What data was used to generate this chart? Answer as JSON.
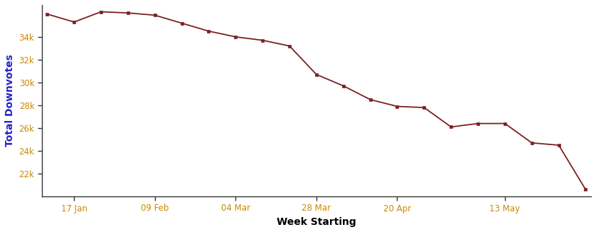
{
  "y_values": [
    36000,
    35300,
    36200,
    36100,
    35900,
    35200,
    34500,
    34000,
    33700,
    33200,
    30700,
    29700,
    28500,
    27900,
    27800,
    26100,
    26400,
    26400,
    24700,
    24500,
    20600
  ],
  "line_color": "#7B2020",
  "marker": "s",
  "marker_size": 3.5,
  "linewidth": 1.3,
  "xlabel": "Week Starting",
  "ylabel": "Total Downvotes",
  "xlabel_color": "#000000",
  "ylabel_color": "#2222cc",
  "tick_color": "#cc8800",
  "ytick_labels": [
    "22k",
    "24k",
    "26k",
    "28k",
    "30k",
    "32k",
    "34k"
  ],
  "ytick_values": [
    22000,
    24000,
    26000,
    28000,
    30000,
    32000,
    34000
  ],
  "xtick_positions": [
    1,
    4,
    7,
    10,
    13,
    17
  ],
  "xtick_labels": [
    "17 Jan",
    "09 Feb",
    "04 Mar",
    "28 Mar",
    "20 Apr",
    "13 May"
  ],
  "ylim": [
    20000,
    36800
  ],
  "xlim_min": -0.2,
  "background_color": "#ffffff",
  "spine_color": "#333333",
  "label_fontsize": 10,
  "tick_fontsize": 8.5
}
